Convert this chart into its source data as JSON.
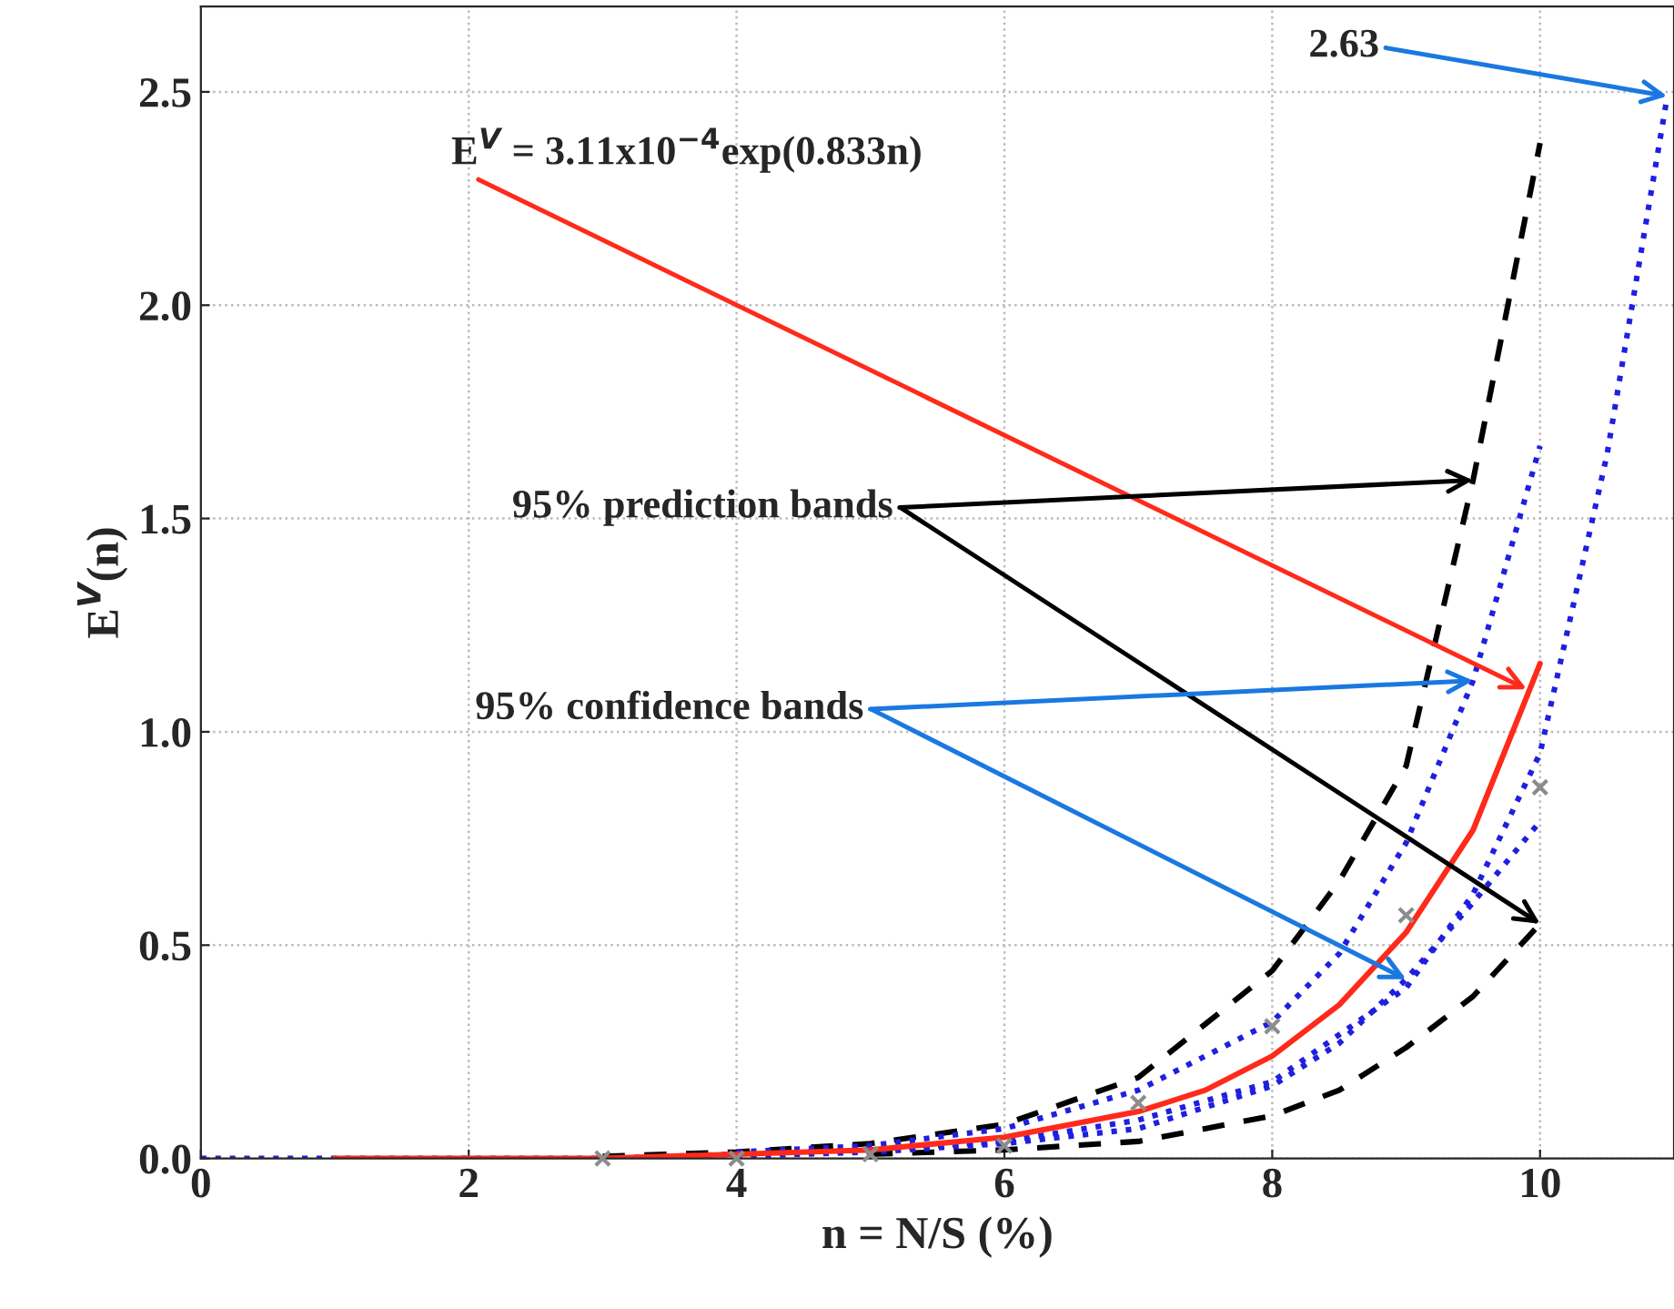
{
  "chart_data": {
    "type": "line",
    "xlabel": "n = N/S (%)",
    "ylabel": "E$^{V}$(n)",
    "xlim": [
      0,
      11
    ],
    "ylim": [
      0,
      2.7
    ],
    "xticks": [
      0,
      2,
      4,
      6,
      8,
      10
    ],
    "yticks": [
      {
        "value": 0,
        "label": "0.0"
      },
      {
        "value": 0.5,
        "label": "0.5"
      },
      {
        "value": 1,
        "label": "1.0"
      },
      {
        "value": 1.5,
        "label": "1.5"
      },
      {
        "value": 2,
        "label": "2.0"
      },
      {
        "value": 2.5,
        "label": "2.5"
      }
    ],
    "grid": true,
    "series": [
      {
        "line_style": "dashed",
        "color": "#000000",
        "x": [
          3,
          4,
          5,
          6,
          7,
          8,
          8.5,
          9,
          9.5,
          10
        ],
        "values": [
          0.005,
          0.015,
          0.035,
          0.08,
          0.19,
          0.44,
          0.65,
          0.92,
          1.59,
          2.38
        ]
      },
      {
        "line_style": "dashed",
        "color": "#000000",
        "x": [
          5,
          6,
          7,
          8,
          8.5,
          9,
          9.5,
          10
        ],
        "values": [
          0.01,
          0.02,
          0.04,
          0.1,
          0.16,
          0.26,
          0.38,
          0.55
        ]
      },
      {
        "line_style": "dotted",
        "color": "#1f1fe0",
        "x": [
          4,
          5,
          6,
          7,
          8,
          8.5,
          9,
          9.5,
          10
        ],
        "values": [
          0.015,
          0.03,
          0.07,
          0.16,
          0.32,
          0.48,
          0.74,
          1.12,
          1.67
        ]
      },
      {
        "line_style": "dotted",
        "color": "#1f1fe0",
        "x": [
          4,
          5,
          6,
          7,
          8,
          8.5,
          9,
          9.5,
          10
        ],
        "values": [
          0.005,
          0.015,
          0.035,
          0.07,
          0.17,
          0.27,
          0.42,
          0.6,
          0.79
        ]
      },
      {
        "line_style": "dotted",
        "color": "#1f1fe0",
        "x": [
          0,
          1,
          2,
          3,
          4,
          5,
          6,
          7,
          8,
          9,
          9.5,
          10,
          10.5,
          10.95
        ],
        "values": [
          0,
          0,
          0,
          0,
          0.01,
          0.02,
          0.04,
          0.09,
          0.18,
          0.4,
          0.62,
          0.95,
          1.65,
          2.49
        ]
      },
      {
        "line_style": "solid",
        "color": "#ff2a1a",
        "x": [
          1,
          2,
          3,
          4,
          5,
          6,
          7,
          7.5,
          8,
          8.5,
          9,
          9.5,
          10
        ],
        "values": [
          0,
          0,
          0,
          0.01,
          0.02,
          0.05,
          0.11,
          0.16,
          0.24,
          0.36,
          0.53,
          0.77,
          1.16
        ]
      },
      {
        "type": "scatter",
        "marker": "cross",
        "color": "#8c8c8c",
        "x": [
          3,
          4,
          5,
          6,
          7,
          8,
          9,
          10
        ],
        "values": [
          0,
          0,
          0.01,
          0.03,
          0.13,
          0.31,
          0.57,
          0.87
        ]
      }
    ],
    "annotations": [
      {
        "text": "E$^{V}$ = 3.11x10$^{−4}$exp(0.833n)",
        "x": 9.9,
        "y": 1.1
      },
      {
        "text": "95% prediction bands",
        "x": 9.5,
        "y": 1.59
      },
      {
        "text": "95% confidence bands",
        "x": 9.5,
        "y": 1.12
      },
      {
        "text": "2.63",
        "x": 10.95,
        "y": 2.49
      }
    ]
  }
}
